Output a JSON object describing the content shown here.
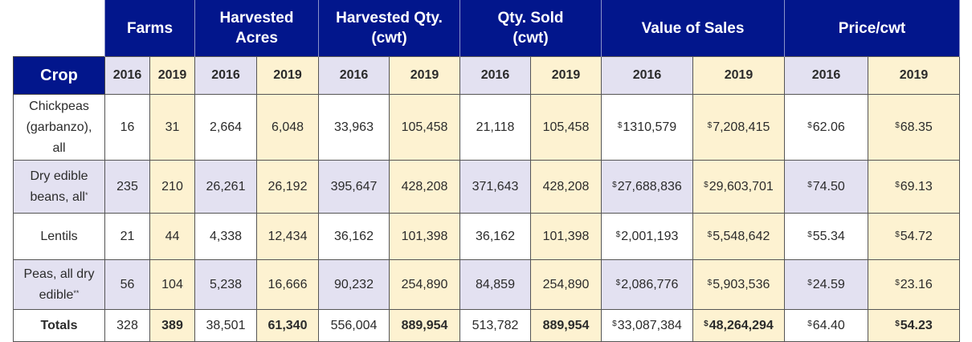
{
  "table": {
    "crop_header": "Crop",
    "groups": [
      {
        "line1": "Farms",
        "line2": ""
      },
      {
        "line1": "Harvested",
        "line2": "Acres"
      },
      {
        "line1": "Harvested Qty.",
        "line2": "(cwt)"
      },
      {
        "line1": "Qty. Sold",
        "line2": "(cwt)"
      },
      {
        "line1": "Value of Sales",
        "line2": ""
      },
      {
        "line1": "Price/cwt",
        "line2": ""
      }
    ],
    "years": [
      "2016",
      "2019"
    ],
    "currency_symbol": "$",
    "rows": [
      {
        "crop": "Chickpeas (garbanzo), all",
        "footnote": "",
        "farms_2016": "16",
        "farms_2019": "31",
        "acres_2016": "2,664",
        "acres_2019": "6,048",
        "hqty_2016": "33,963",
        "hqty_2019": "105,458",
        "sold_2016": "21,118",
        "sold_2019": "105,458",
        "value_2016": "1310,579",
        "value_2019": "7,208,415",
        "price_2016": "62.06",
        "price_2019": "68.35"
      },
      {
        "crop": "Dry edible beans, all",
        "footnote": "*",
        "farms_2016": "235",
        "farms_2019": "210",
        "acres_2016": "26,261",
        "acres_2019": "26,192",
        "hqty_2016": "395,647",
        "hqty_2019": "428,208",
        "sold_2016": "371,643",
        "sold_2019": "428,208",
        "value_2016": "27,688,836",
        "value_2019": "29,603,701",
        "price_2016": "74.50",
        "price_2019": "69.13"
      },
      {
        "crop": "Lentils",
        "footnote": "",
        "farms_2016": "21",
        "farms_2019": "44",
        "acres_2016": "4,338",
        "acres_2019": "12,434",
        "hqty_2016": "36,162",
        "hqty_2019": "101,398",
        "sold_2016": "36,162",
        "sold_2019": "101,398",
        "value_2016": "2,001,193",
        "value_2019": "5,548,642",
        "price_2016": "55.34",
        "price_2019": "54.72"
      },
      {
        "crop": "Peas, all dry edible",
        "footnote": "**",
        "farms_2016": "56",
        "farms_2019": "104",
        "acres_2016": "5,238",
        "acres_2019": "16,666",
        "hqty_2016": "90,232",
        "hqty_2019": "254,890",
        "sold_2016": "84,859",
        "sold_2019": "254,890",
        "value_2016": "2,086,776",
        "value_2019": "5,903,536",
        "price_2016": "24.59",
        "price_2019": "23.16"
      },
      {
        "crop": "Totals",
        "footnote": "",
        "farms_2016": "328",
        "farms_2019": "389",
        "acres_2016": "38,501",
        "acres_2019": "61,340",
        "hqty_2016": "556,004",
        "hqty_2019": "889,954",
        "sold_2016": "513,782",
        "sold_2019": "889,954",
        "value_2016": "33,087,384",
        "value_2019": "48,264,294",
        "price_2016": "64.40",
        "price_2019": "54.23"
      }
    ]
  },
  "colors": {
    "header_navy": "#02168c",
    "col_2016": "#e3e1f1",
    "col_2019": "#fdf2d1",
    "row_white": "#ffffff"
  }
}
